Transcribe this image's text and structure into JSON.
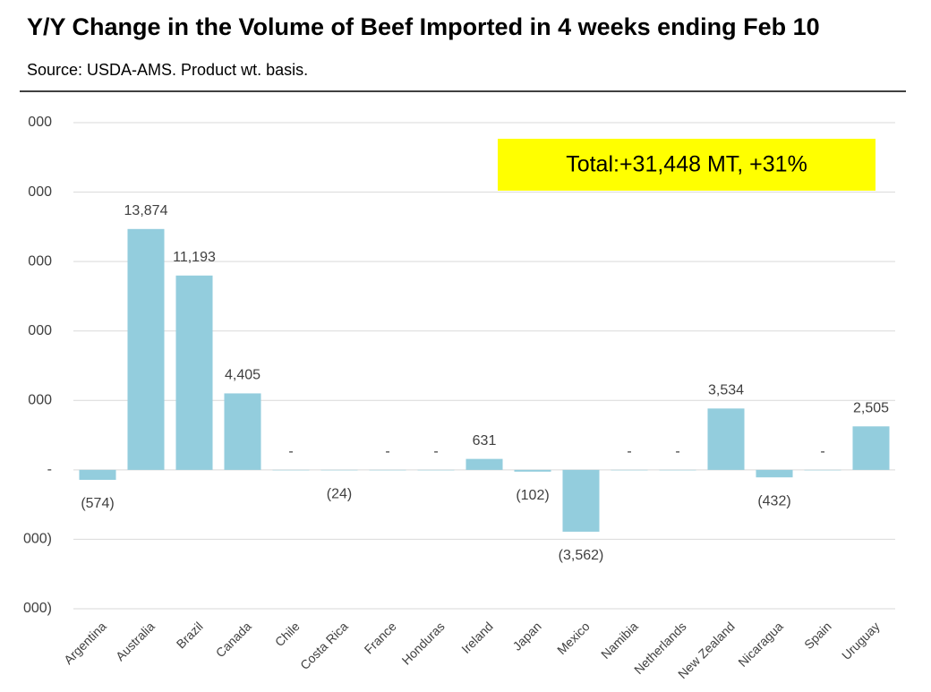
{
  "chart_data": {
    "type": "bar",
    "title": "Y/Y Change in the Volume of Beef Imported in 4 weeks ending Feb 10",
    "subtitle": "Source:  USDA-AMS.  Product wt. basis.",
    "annotation": "Total:+31,448 MT, +31%",
    "categories": [
      "Argentina",
      "Australia",
      "Brazil",
      "Canada",
      "Chile",
      "Costa Rica",
      "France",
      "Honduras",
      "Ireland",
      "Japan",
      "Mexico",
      "Namibia",
      "Netherlands",
      "New Zealand",
      "Nicaragua",
      "Spain",
      "Uruguay"
    ],
    "values": [
      -574,
      13874,
      11193,
      4405,
      0,
      -24,
      0,
      0,
      631,
      -102,
      -3562,
      0,
      0,
      3534,
      -432,
      0,
      2505
    ],
    "value_labels": [
      "(574)",
      "13,874",
      "11,193",
      "4,405",
      "-",
      "(24)",
      "-",
      "-",
      "631",
      "(102)",
      "(3,562)",
      "-",
      "-",
      "3,534",
      "(432)",
      "-",
      "2,505"
    ],
    "color": "#93cddd",
    "ylim": [
      -8000,
      20000
    ],
    "yticks": [
      {
        "value": 20000,
        "label": "000"
      },
      {
        "value": 16000,
        "label": "000"
      },
      {
        "value": 12000,
        "label": "000"
      },
      {
        "value": 8000,
        "label": "000"
      },
      {
        "value": 4000,
        "label": "000"
      },
      {
        "value": 0,
        "label": "-"
      },
      {
        "value": -4000,
        "label": "000)"
      },
      {
        "value": -8000,
        "label": "000)"
      }
    ],
    "grid": true
  }
}
